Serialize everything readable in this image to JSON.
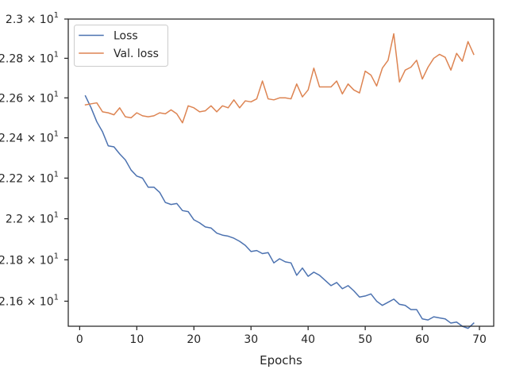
{
  "chart_data": {
    "type": "line",
    "xlabel": "Epochs",
    "ylabel": "",
    "xlim": [
      -2,
      72.5
    ],
    "ylim": [
      21.48,
      23.0
    ],
    "x_ticks": [
      0,
      10,
      20,
      30,
      40,
      50,
      60,
      70
    ],
    "x_tick_labels": [
      "0",
      "10",
      "20",
      "30",
      "40",
      "50",
      "60",
      "70"
    ],
    "y_ticks": [
      21.6,
      21.8,
      22.0,
      22.2,
      22.4,
      22.6,
      22.8,
      23.0
    ],
    "y_tick_labels": [
      {
        "mantissa": "2.16",
        "base": "10",
        "exp": "1"
      },
      {
        "mantissa": "2.18",
        "base": "10",
        "exp": "1"
      },
      {
        "mantissa": "2.2",
        "base": "10",
        "exp": "1"
      },
      {
        "mantissa": "2.22",
        "base": "10",
        "exp": "1"
      },
      {
        "mantissa": "2.24",
        "base": "10",
        "exp": "1"
      },
      {
        "mantissa": "2.26",
        "base": "10",
        "exp": "1"
      },
      {
        "mantissa": "2.28",
        "base": "10",
        "exp": "1"
      },
      {
        "mantissa": "2.3",
        "base": "10",
        "exp": "1"
      }
    ],
    "log_scale_y": true,
    "grid": false,
    "legend_position": "top-left",
    "series": [
      {
        "name": "Loss",
        "color": "#4c72b0",
        "x": [
          1,
          2,
          3,
          4,
          5,
          6,
          7,
          8,
          9,
          10,
          11,
          12,
          13,
          14,
          15,
          16,
          17,
          18,
          19,
          20,
          21,
          22,
          23,
          24,
          25,
          26,
          27,
          28,
          29,
          30,
          31,
          32,
          33,
          34,
          35,
          36,
          37,
          38,
          39,
          40,
          41,
          42,
          43,
          44,
          45,
          46,
          47,
          48,
          49,
          50,
          51,
          52,
          53,
          54,
          55,
          56,
          57,
          58,
          59,
          60,
          61,
          62,
          63,
          64,
          65,
          66,
          67,
          68,
          69
        ],
        "y": [
          22.61,
          22.55,
          22.48,
          22.43,
          22.36,
          22.355,
          22.32,
          22.29,
          22.24,
          22.21,
          22.2,
          22.155,
          22.155,
          22.13,
          22.08,
          22.07,
          22.075,
          22.04,
          22.035,
          21.995,
          21.98,
          21.96,
          21.955,
          21.93,
          21.92,
          21.915,
          21.905,
          21.89,
          21.87,
          21.84,
          21.845,
          21.83,
          21.835,
          21.785,
          21.805,
          21.79,
          21.785,
          21.725,
          21.76,
          21.72,
          21.74,
          21.725,
          21.7,
          21.675,
          21.69,
          21.66,
          21.675,
          21.65,
          21.62,
          21.625,
          21.635,
          21.6,
          21.58,
          21.595,
          21.61,
          21.585,
          21.58,
          21.56,
          21.56,
          21.515,
          21.51,
          21.525,
          21.52,
          21.515,
          21.495,
          21.5,
          21.48,
          21.47,
          21.495
        ]
      },
      {
        "name": "Val. loss",
        "color": "#dd8452",
        "x": [
          1,
          2,
          3,
          4,
          5,
          6,
          7,
          8,
          9,
          10,
          11,
          12,
          13,
          14,
          15,
          16,
          17,
          18,
          19,
          20,
          21,
          22,
          23,
          24,
          25,
          26,
          27,
          28,
          29,
          30,
          31,
          32,
          33,
          34,
          35,
          36,
          37,
          38,
          39,
          40,
          41,
          42,
          43,
          44,
          45,
          46,
          47,
          48,
          49,
          50,
          51,
          52,
          53,
          54,
          55,
          56,
          57,
          58,
          59,
          60,
          61,
          62,
          63,
          64,
          65,
          66,
          67,
          68,
          69
        ],
        "y": [
          22.565,
          22.57,
          22.575,
          22.53,
          22.525,
          22.515,
          22.55,
          22.505,
          22.5,
          22.525,
          22.51,
          22.505,
          22.51,
          22.525,
          22.52,
          22.54,
          22.52,
          22.475,
          22.56,
          22.55,
          22.53,
          22.535,
          22.56,
          22.53,
          22.56,
          22.55,
          22.59,
          22.55,
          22.585,
          22.58,
          22.595,
          22.685,
          22.595,
          22.59,
          22.6,
          22.6,
          22.595,
          22.67,
          22.605,
          22.64,
          22.75,
          22.655,
          22.655,
          22.655,
          22.685,
          22.62,
          22.67,
          22.64,
          22.625,
          22.735,
          22.715,
          22.66,
          22.75,
          22.79,
          22.925,
          22.68,
          22.74,
          22.755,
          22.79,
          22.695,
          22.755,
          22.8,
          22.82,
          22.805,
          22.74,
          22.825,
          22.785,
          22.885,
          22.82
        ]
      }
    ]
  }
}
